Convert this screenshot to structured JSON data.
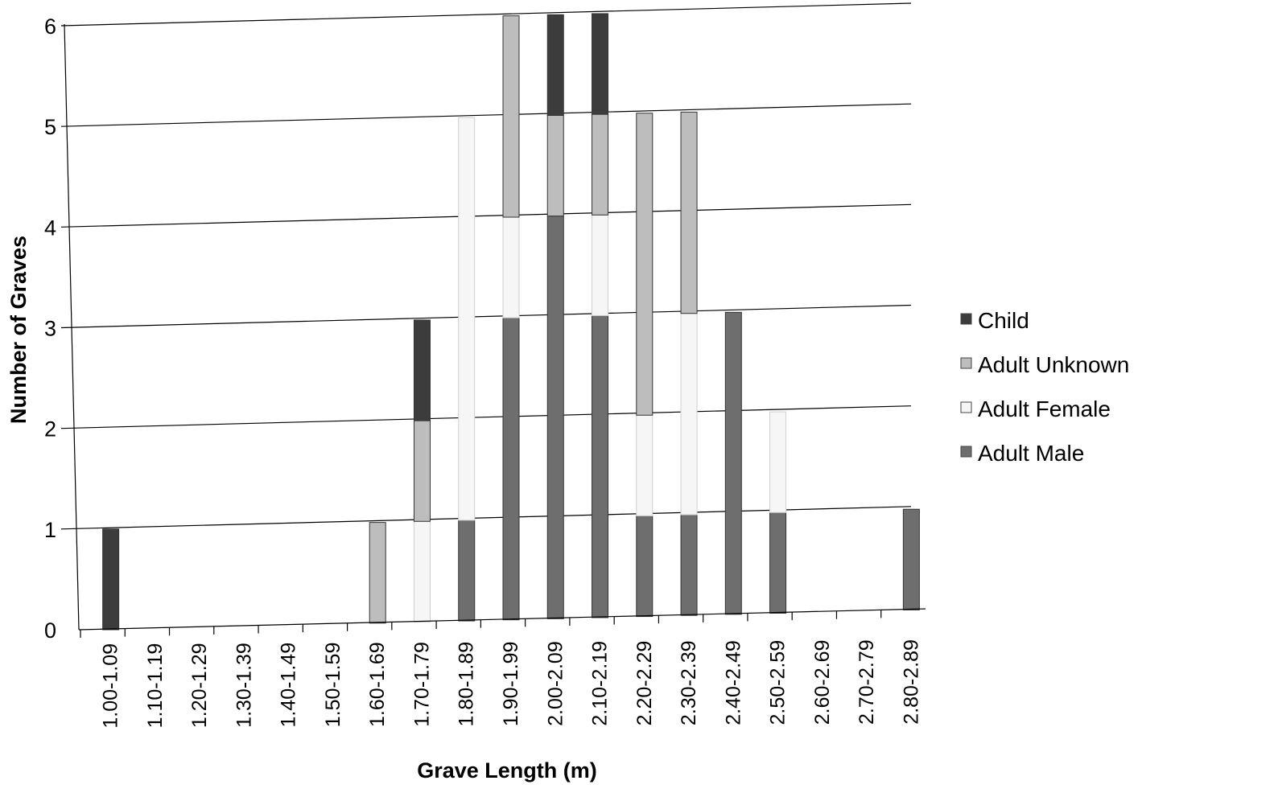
{
  "chart_data": {
    "type": "bar",
    "stacked": true,
    "title": "",
    "xlabel": "Grave Length (m)",
    "ylabel": "Number of Graves",
    "ylim": [
      0,
      6
    ],
    "yticks": [
      "0",
      "1",
      "2",
      "3",
      "4",
      "5",
      "6"
    ],
    "grid": true,
    "legend_position": "right",
    "categories": [
      "1.00-1.09",
      "1.10-1.19",
      "1.20-1.29",
      "1.30-1.39",
      "1.40-1.49",
      "1.50-1.59",
      "1.60-1.69",
      "1.70-1.79",
      "1.80-1.89",
      "1.90-1.99",
      "2.00-2.09",
      "2.10-2.19",
      "2.20-2.29",
      "2.30-2.39",
      "2.40-2.49",
      "2.50-2.59",
      "2.60-2.69",
      "2.70-2.79",
      "2.80-2.89"
    ],
    "series": [
      {
        "name": "Adult Male",
        "color": "#6e6e6e",
        "values": [
          0,
          0,
          0,
          0,
          0,
          0,
          0,
          0,
          1,
          3,
          4,
          3,
          1,
          1,
          3,
          1,
          0,
          0,
          1
        ]
      },
      {
        "name": "Adult Female",
        "color": "#f6f6f6",
        "values": [
          0,
          0,
          0,
          0,
          0,
          0,
          0,
          1,
          4,
          1,
          0,
          1,
          1,
          2,
          0,
          1,
          0,
          0,
          0
        ]
      },
      {
        "name": "Adult Unknown",
        "color": "#bdbdbd",
        "values": [
          0,
          0,
          0,
          0,
          0,
          0,
          1,
          1,
          0,
          2,
          1,
          1,
          3,
          2,
          0,
          0,
          0,
          0,
          0
        ]
      },
      {
        "name": "Child",
        "color": "#3c3c3c",
        "values": [
          1,
          0,
          0,
          0,
          0,
          0,
          0,
          1,
          0,
          0,
          1,
          1,
          0,
          0,
          0,
          0,
          0,
          0,
          0
        ]
      }
    ],
    "legend_order": [
      "Child",
      "Adult Unknown",
      "Adult Female",
      "Adult Male"
    ]
  }
}
